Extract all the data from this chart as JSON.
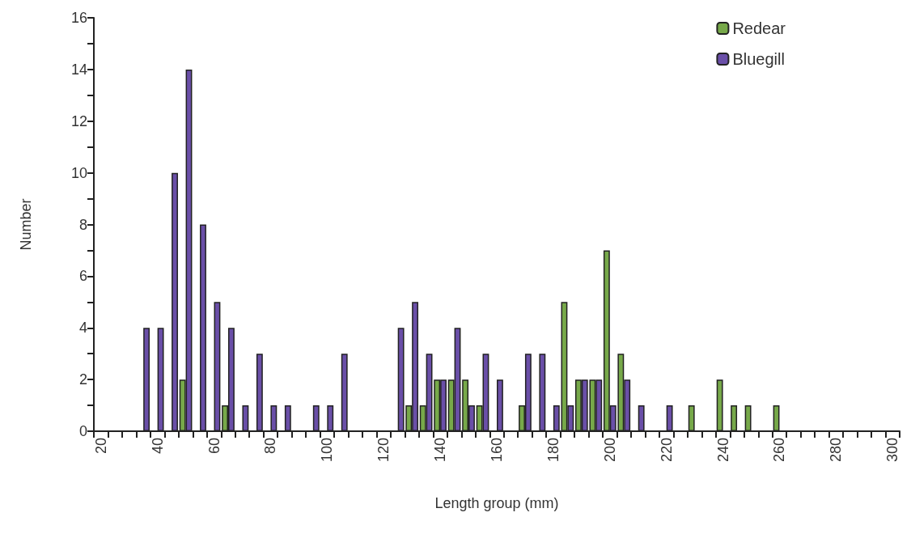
{
  "chart_data": {
    "type": "bar",
    "xlabel": "Length group (mm)",
    "ylabel": "Number",
    "categories": [
      "20",
      null,
      null,
      null,
      "40",
      null,
      null,
      null,
      "60",
      null,
      null,
      null,
      "80",
      null,
      null,
      null,
      "100",
      null,
      null,
      null,
      "120",
      null,
      null,
      null,
      "140",
      null,
      null,
      null,
      "160",
      null,
      null,
      null,
      "180",
      null,
      null,
      null,
      "200",
      null,
      null,
      null,
      "220",
      null,
      null,
      null,
      "240",
      null,
      null,
      null,
      "260",
      null,
      null,
      null,
      "280",
      null,
      null,
      null,
      "300"
    ],
    "series": [
      {
        "name": "Redear",
        "color": "#77a94a",
        "values": [
          0,
          0,
          0,
          0,
          0,
          0,
          2,
          0,
          0,
          1,
          0,
          0,
          0,
          0,
          0,
          0,
          0,
          0,
          0,
          0,
          0,
          0,
          1,
          1,
          2,
          2,
          2,
          1,
          0,
          0,
          1,
          0,
          0,
          5,
          2,
          2,
          7,
          3,
          0,
          0,
          0,
          0,
          1,
          0,
          2,
          1,
          1,
          0,
          1,
          0,
          0,
          0,
          0,
          0,
          0,
          0,
          0
        ]
      },
      {
        "name": "Bluegill",
        "color": "#6a4fa8",
        "values": [
          0,
          0,
          0,
          4,
          4,
          10,
          14,
          8,
          5,
          4,
          1,
          3,
          1,
          1,
          0,
          1,
          1,
          3,
          0,
          0,
          0,
          4,
          5,
          3,
          2,
          4,
          1,
          3,
          2,
          0,
          3,
          3,
          1,
          1,
          2,
          2,
          1,
          2,
          1,
          0,
          1,
          0,
          0,
          0,
          0,
          0,
          0,
          0,
          0,
          0,
          0,
          0,
          0,
          0,
          0,
          0,
          0
        ]
      }
    ],
    "ylim": [
      0,
      16
    ],
    "yticks": [
      0,
      {
        "value": 1,
        "label": null
      },
      2,
      {
        "value": 3,
        "label": null
      },
      4,
      {
        "value": 5,
        "label": null
      },
      6,
      {
        "value": 7,
        "label": null
      },
      8,
      {
        "value": 9,
        "label": null
      },
      10,
      {
        "value": 11,
        "label": null
      },
      12,
      {
        "value": 13,
        "label": null
      },
      14,
      {
        "value": 15,
        "label": null
      },
      16
    ],
    "grid": false,
    "legend": "top right"
  }
}
